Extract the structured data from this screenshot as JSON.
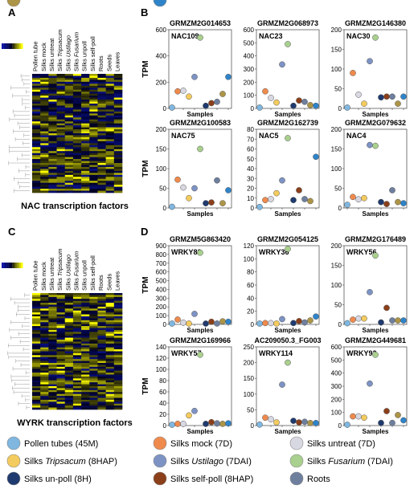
{
  "panel_letters": {
    "A": "A",
    "B": "B",
    "C": "C",
    "D": "D"
  },
  "heatmap_A": {
    "columns": [
      "Pollen tube",
      "Silks mock",
      "Silks untreat",
      "Silks Tripsacum",
      "Silks Ustilago",
      "Silks Fusarium",
      "Silks unpoll",
      "Silks self-poll",
      "Roots",
      "Seeds",
      "Leaves"
    ],
    "caption": "NAC transcription factors"
  },
  "heatmap_C": {
    "columns": [
      "Pollen tube",
      "Silks mock",
      "Silks untreat",
      "Silks Tripsacum",
      "Silks Ustilago",
      "Silks Fusarium",
      "Silks unpoll",
      "Silks self-poll",
      "Roots",
      "Seeds",
      "Leaves"
    ],
    "caption": "WYRK transcription factors"
  },
  "y_axis_label": "TPM",
  "x_axis_label": "Samples",
  "colors": {
    "pollen": "#7fb7e0",
    "mock": "#ef8a4d",
    "untreat": "#d8d8e2",
    "tripsacum": "#f4cb5e",
    "ustilago": "#7d93c4",
    "fusarium": "#a9d08e",
    "unpoll": "#1f3a6e",
    "selfpoll": "#8b3f1a",
    "roots": "#6e7f9e",
    "seeds": "#ad9547",
    "leaves": "#2f84c9"
  },
  "chart_data": [
    {
      "type": "scatter",
      "title": "GRMZM2G014653",
      "annotation": "NAC109",
      "ylim": [
        0,
        600
      ],
      "yticks": [
        0,
        200,
        400,
        600
      ],
      "values": [
        2,
        130,
        135,
        90,
        240,
        540,
        20,
        40,
        50,
        110,
        240
      ]
    },
    {
      "type": "scatter",
      "title": "GRMZM2G068973",
      "annotation": "NAC23",
      "ylim": [
        0,
        600
      ],
      "yticks": [
        0,
        100,
        200,
        300,
        400,
        500,
        600
      ],
      "values": [
        5,
        130,
        80,
        45,
        335,
        490,
        20,
        60,
        50,
        25,
        20
      ]
    },
    {
      "type": "scatter",
      "title": "GRMZM2G146380",
      "annotation": "NAC30",
      "ylim": [
        0,
        200
      ],
      "yticks": [
        0,
        50,
        100,
        150,
        200
      ],
      "values": [
        2,
        90,
        35,
        12,
        120,
        180,
        28,
        30,
        30,
        12,
        30
      ]
    },
    {
      "type": "scatter",
      "title": "GRMZM2G100583",
      "annotation": "NAC75",
      "ylim": [
        0,
        200
      ],
      "yticks": [
        0,
        50,
        100,
        150,
        200
      ],
      "values": [
        3,
        72,
        52,
        25,
        50,
        150,
        12,
        14,
        70,
        12,
        45
      ]
    },
    {
      "type": "scatter",
      "title": "GRMZM2G162739",
      "annotation": "NAC5",
      "ylim": [
        0,
        80
      ],
      "yticks": [
        0,
        10,
        20,
        30,
        40,
        50,
        60,
        70,
        80
      ],
      "values": [
        1,
        8,
        9,
        15,
        28,
        71,
        8,
        18,
        9,
        7,
        52
      ]
    },
    {
      "type": "scatter",
      "title": "GRMZM2G079632",
      "annotation": "NAC4",
      "ylim": [
        0,
        200
      ],
      "yticks": [
        0,
        50,
        100,
        150,
        200
      ],
      "values": [
        8,
        28,
        22,
        25,
        160,
        158,
        15,
        10,
        45,
        15,
        12
      ]
    },
    {
      "type": "scatter",
      "title": "GRMZM5G863420",
      "annotation": "WRKY82",
      "ylim": [
        0,
        900
      ],
      "yticks": [
        0,
        100,
        200,
        300,
        400,
        500,
        600,
        700,
        800,
        900
      ],
      "values": [
        5,
        55,
        20,
        5,
        120,
        820,
        5,
        30,
        10,
        35,
        30
      ]
    },
    {
      "type": "scatter",
      "title": "GRMZM2G054125",
      "annotation": "WRKY36",
      "ylim": [
        0,
        120
      ],
      "yticks": [
        0,
        20,
        40,
        60,
        80,
        100,
        120
      ],
      "values": [
        1,
        2,
        2,
        1,
        8,
        115,
        2,
        5,
        3,
        6,
        12
      ]
    },
    {
      "type": "scatter",
      "title": "GRMZM2G176489",
      "annotation": "WRKY56",
      "ylim": [
        0,
        200
      ],
      "yticks": [
        0,
        50,
        100,
        150,
        200
      ],
      "values": [
        3,
        12,
        15,
        15,
        82,
        175,
        5,
        42,
        10,
        10,
        10
      ]
    },
    {
      "type": "scatter",
      "title": "GRMZM2G169966",
      "annotation": "WRKY57",
      "ylim": [
        0,
        140
      ],
      "yticks": [
        0,
        20,
        40,
        60,
        80,
        100,
        120,
        140
      ],
      "values": [
        1,
        3,
        3,
        18,
        26,
        126,
        3,
        6,
        4,
        3,
        4
      ]
    },
    {
      "type": "scatter",
      "title": "AC209050.3_FG003",
      "annotation": "WRKY114",
      "ylim": [
        0,
        250
      ],
      "yticks": [
        0,
        50,
        100,
        150,
        200,
        250
      ],
      "values": [
        3,
        25,
        20,
        10,
        130,
        200,
        15,
        10,
        12,
        8,
        8
      ]
    },
    {
      "type": "scatter",
      "title": "GRMZM2G449681",
      "annotation": "WRKY92",
      "ylim": [
        0,
        600
      ],
      "yticks": [
        0,
        100,
        200,
        300,
        400,
        500,
        600
      ],
      "values": [
        2,
        70,
        70,
        60,
        320,
        540,
        20,
        110,
        20,
        80,
        40
      ]
    }
  ],
  "series_order": [
    "pollen",
    "mock",
    "untreat",
    "tripsacum",
    "ustilago",
    "fusarium",
    "unpoll",
    "selfpoll",
    "roots",
    "seeds",
    "leaves"
  ],
  "legend": [
    {
      "key": "pollen",
      "label": "Pollen tubes (45M)"
    },
    {
      "key": "mock",
      "label": "Silks mock (7D)"
    },
    {
      "key": "untreat",
      "label": "Silks untreat (7D)"
    },
    {
      "key": "tripsacum",
      "label_pre": "Silks ",
      "label_it": "Tripsacum",
      "label_post": " (8HAP)"
    },
    {
      "key": "ustilago",
      "label_pre": "Silks ",
      "label_it": "Ustilago",
      "label_post": " (7DAI)"
    },
    {
      "key": "fusarium",
      "label_pre": "Silks ",
      "label_it": "Fusarium",
      "label_post": " (7DAI)"
    },
    {
      "key": "unpoll",
      "label": "Silks un-poll (8H)"
    },
    {
      "key": "selfpoll",
      "label": "Silks self-poll (8HAP)"
    },
    {
      "key": "roots",
      "label": "Roots"
    },
    {
      "key": "seeds",
      "label": "Seeds"
    },
    {
      "key": "leaves",
      "label": "Leaves"
    }
  ]
}
